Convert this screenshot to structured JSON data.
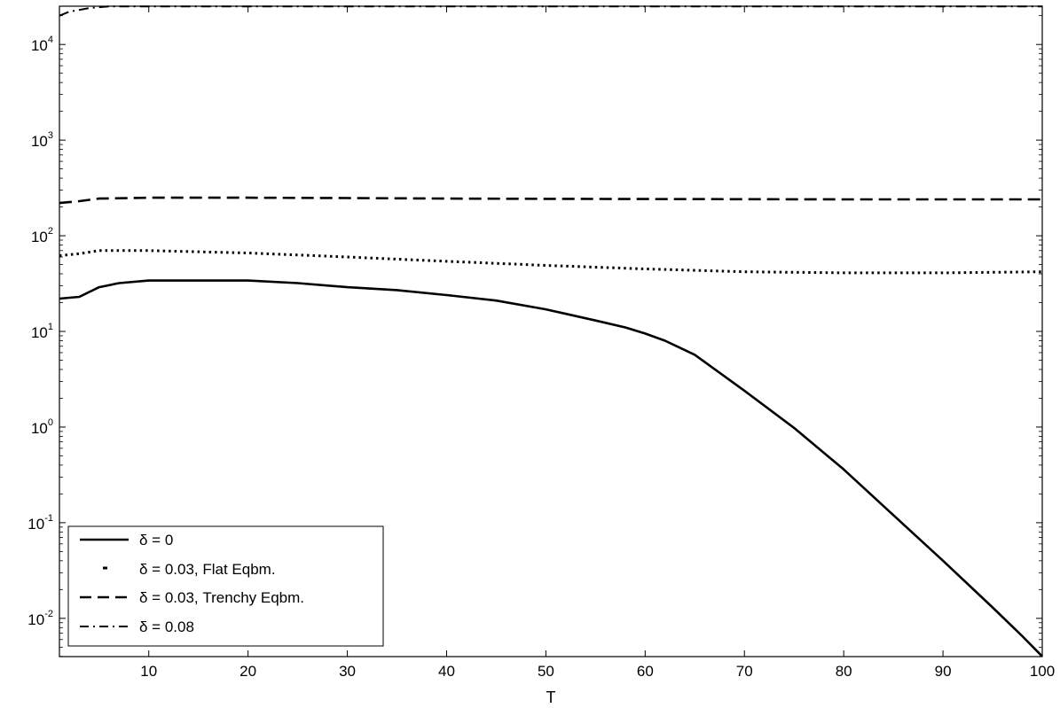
{
  "chart_data": {
    "type": "line",
    "title": "",
    "xlabel": "T",
    "ylabel": "",
    "xlim": [
      1,
      100
    ],
    "ylog": true,
    "ylim_exponents": [
      -2.4,
      4.4
    ],
    "x_ticks": [
      {
        "value": 10,
        "label": "10"
      },
      {
        "value": 20,
        "label": "20"
      },
      {
        "value": 30,
        "label": "30"
      },
      {
        "value": 40,
        "label": "40"
      },
      {
        "value": 50,
        "label": "50"
      },
      {
        "value": 60,
        "label": "60"
      },
      {
        "value": 70,
        "label": "70"
      },
      {
        "value": 80,
        "label": "80"
      },
      {
        "value": 90,
        "label": "90"
      },
      {
        "value": 100,
        "label": "100"
      }
    ],
    "y_ticks": [
      {
        "exp": -2,
        "base": "10",
        "sup": "-2"
      },
      {
        "exp": -1,
        "base": "10",
        "sup": "-1"
      },
      {
        "exp": 0,
        "base": "10",
        "sup": "0"
      },
      {
        "exp": 1,
        "base": "10",
        "sup": "1"
      },
      {
        "exp": 2,
        "base": "10",
        "sup": "2"
      },
      {
        "exp": 3,
        "base": "10",
        "sup": "3"
      },
      {
        "exp": 4,
        "base": "10",
        "sup": "4"
      }
    ],
    "grid": false,
    "legend_position": "bottom-left",
    "series": [
      {
        "name": "δ = 0",
        "style": "solid",
        "x": [
          1,
          3,
          5,
          7,
          10,
          15,
          20,
          25,
          30,
          35,
          40,
          45,
          50,
          55,
          58,
          60,
          62,
          65,
          70,
          75,
          80,
          85,
          90,
          95,
          98,
          100
        ],
        "y": [
          22,
          23,
          29,
          32,
          34,
          34,
          34,
          32,
          29,
          27,
          24,
          21,
          17,
          13,
          11,
          9.5,
          8,
          5.7,
          2.4,
          0.98,
          0.36,
          0.12,
          0.04,
          0.013,
          0.0065,
          0.004
        ]
      },
      {
        "name": "δ = 0.03, Flat Eqbm.",
        "style": "dotted",
        "x": [
          1,
          3,
          5,
          10,
          20,
          30,
          40,
          50,
          60,
          70,
          80,
          90,
          100
        ],
        "y": [
          62,
          65,
          70,
          70,
          66,
          60,
          54,
          49,
          45,
          42,
          41,
          41,
          42
        ]
      },
      {
        "name": "δ = 0.03, Trenchy Eqbm.",
        "style": "dashed",
        "x": [
          1,
          3,
          5,
          10,
          20,
          30,
          40,
          50,
          60,
          70,
          80,
          90,
          100
        ],
        "y": [
          220,
          230,
          245,
          250,
          250,
          248,
          245,
          243,
          242,
          241,
          240,
          240,
          240
        ]
      },
      {
        "name": "δ = 0.08",
        "style": "dashdot",
        "x": [
          1,
          2,
          4,
          6,
          10,
          20,
          30,
          40,
          50,
          60,
          70,
          80,
          90,
          100
        ],
        "y": [
          20000,
          22000,
          24000,
          25000,
          25000,
          25000,
          25000,
          25000,
          25000,
          25000,
          25000,
          25000,
          25000,
          25000
        ]
      }
    ]
  }
}
